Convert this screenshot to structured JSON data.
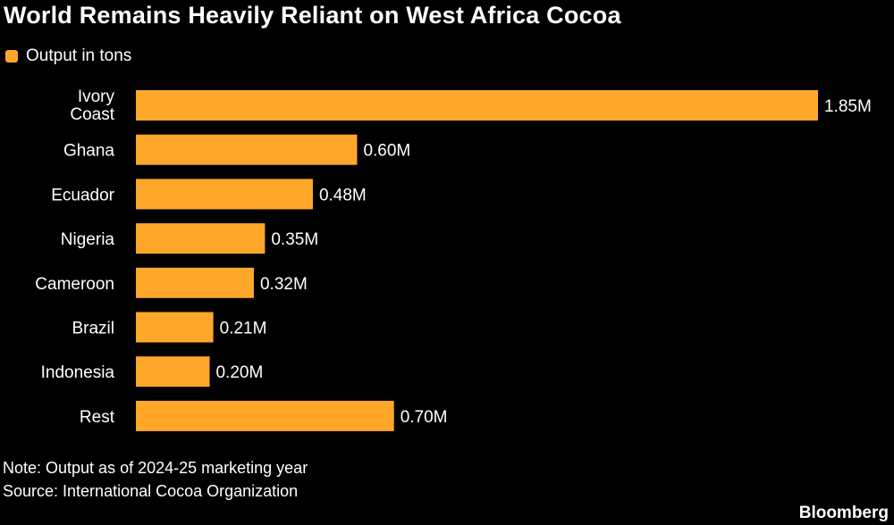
{
  "title": "World Remains Heavily Reliant on West Africa Cocoa",
  "legend": {
    "label": "Output in tons",
    "color": "#FFA72A"
  },
  "notes": {
    "note": "Note: Output as of 2024-25 marketing year",
    "source": "Source: International Cocoa Organization"
  },
  "brand": "Bloomberg",
  "chart_data": {
    "type": "bar",
    "orientation": "horizontal",
    "categories": [
      "Ivory Coast",
      "Ghana",
      "Ecuador",
      "Nigeria",
      "Cameroon",
      "Brazil",
      "Indonesia",
      "Rest"
    ],
    "series": [
      {
        "name": "Output in tons",
        "values": [
          1.85,
          0.6,
          0.48,
          0.35,
          0.32,
          0.21,
          0.2,
          0.7
        ],
        "labels": [
          "1.85M",
          "0.60M",
          "0.48M",
          "0.35M",
          "0.32M",
          "0.21M",
          "0.20M",
          "0.70M"
        ]
      }
    ],
    "unit": "M",
    "xlim": [
      0,
      1.85
    ],
    "grid": false,
    "legend_position": "top-left",
    "colors": {
      "bar": "#FFA72A",
      "background": "#000000",
      "text": "#FFFFFF"
    }
  }
}
